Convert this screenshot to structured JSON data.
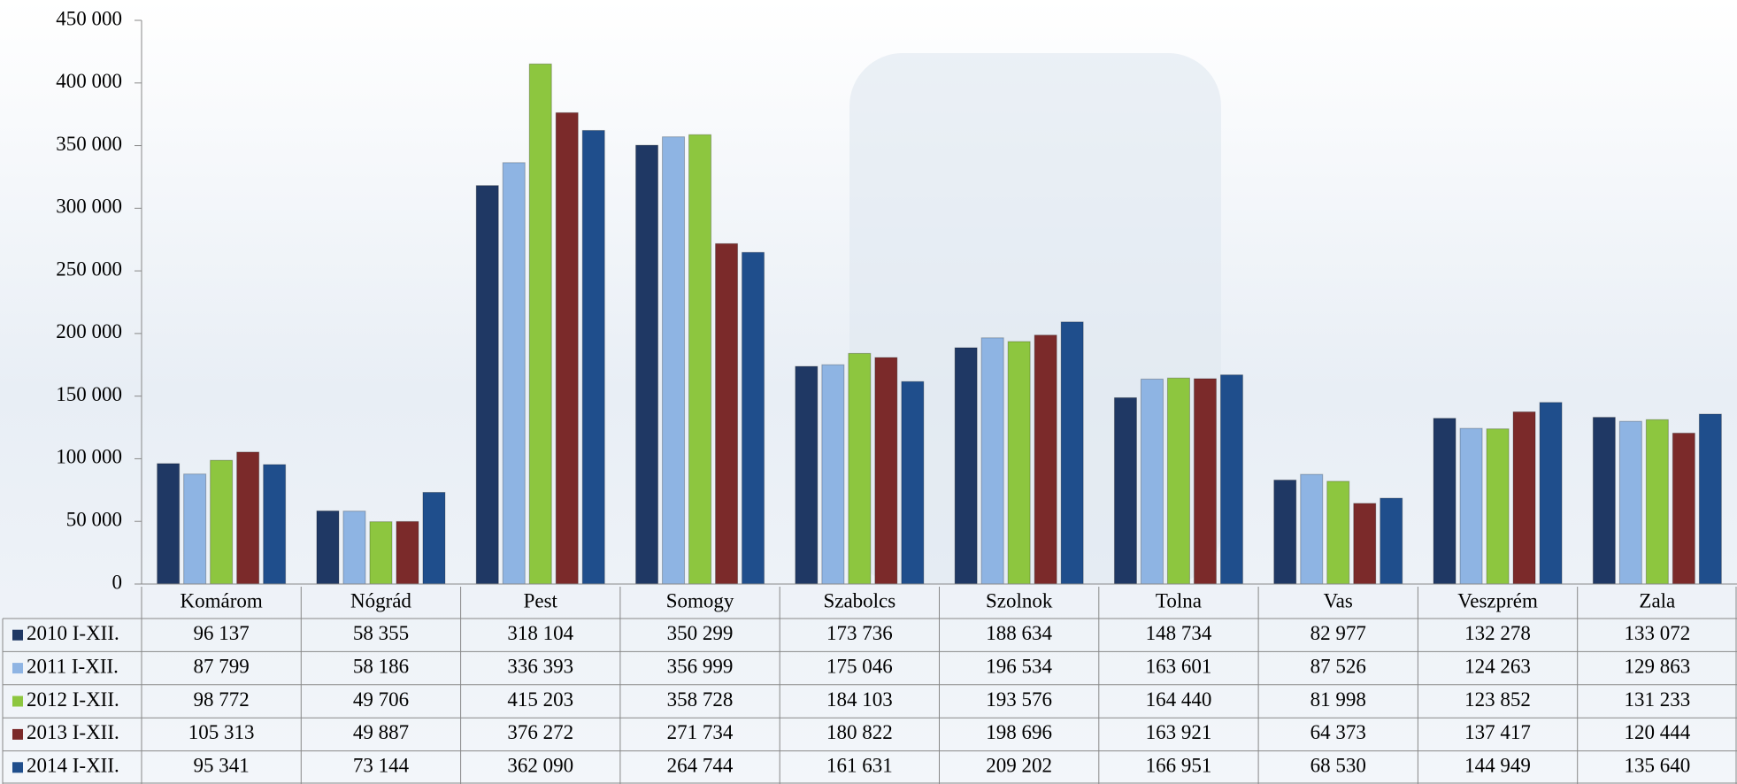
{
  "chart_data": {
    "type": "bar",
    "categories": [
      "Komárom",
      "Nógrád",
      "Pest",
      "Somogy",
      "Szabolcs",
      "Szolnok",
      "Tolna",
      "Vas",
      "Veszprém",
      "Zala"
    ],
    "series": [
      {
        "name": "2010 I-XII.",
        "color": "#1f3864",
        "values": [
          96137,
          58355,
          318104,
          350299,
          173736,
          188634,
          148734,
          82977,
          132278,
          133072
        ],
        "value_labels": [
          "96 137",
          "58 355",
          "318 104",
          "350 299",
          "173 736",
          "188 634",
          "148 734",
          "82 977",
          "132 278",
          "133 072"
        ]
      },
      {
        "name": "2011 I-XII.",
        "color": "#8eb4e3",
        "values": [
          87799,
          58186,
          336393,
          356999,
          175046,
          196534,
          163601,
          87526,
          124263,
          129863
        ],
        "value_labels": [
          "87 799",
          "58 186",
          "336 393",
          "356 999",
          "175 046",
          "196 534",
          "163 601",
          "87 526",
          "124 263",
          "129 863"
        ]
      },
      {
        "name": "2012 I-XII.",
        "color": "#8dc63f",
        "values": [
          98772,
          49706,
          415203,
          358728,
          184103,
          193576,
          164440,
          81998,
          123852,
          131233
        ],
        "value_labels": [
          "98 772",
          "49 706",
          "415 203",
          "358 728",
          "184 103",
          "193 576",
          "164 440",
          "81 998",
          "123 852",
          "131 233"
        ]
      },
      {
        "name": "2013 I-XII.",
        "color": "#7b2a2a",
        "values": [
          105313,
          49887,
          376272,
          271734,
          180822,
          198696,
          163921,
          64373,
          137417,
          120444
        ],
        "value_labels": [
          "105 313",
          "49 887",
          "376 272",
          "271 734",
          "180 822",
          "198 696",
          "163 921",
          "64 373",
          "137 417",
          "120 444"
        ]
      },
      {
        "name": "2014 I-XII.",
        "color": "#1f4e8c",
        "values": [
          95341,
          73144,
          362090,
          264744,
          161631,
          209202,
          166951,
          68530,
          144949,
          135640
        ],
        "value_labels": [
          "95 341",
          "73 144",
          "362 090",
          "264 744",
          "161 631",
          "209 202",
          "166 951",
          "68 530",
          "144 949",
          "135 640"
        ]
      }
    ],
    "ylim": [
      0,
      450000
    ],
    "yticks": [
      0,
      {
        "value": 50000,
        "label": "50 000"
      },
      {
        "value": 100000,
        "label": "100 000"
      },
      {
        "value": 150000,
        "label": "150 000"
      },
      {
        "value": 200000,
        "label": "200 000"
      },
      {
        "value": 250000,
        "label": "250 000"
      },
      {
        "value": 300000,
        "label": "300 000"
      },
      {
        "value": 350000,
        "label": "350 000"
      },
      {
        "value": 400000,
        "label": "400 000"
      },
      {
        "value": 450000,
        "label": "450 000"
      }
    ],
    "grid": false
  }
}
